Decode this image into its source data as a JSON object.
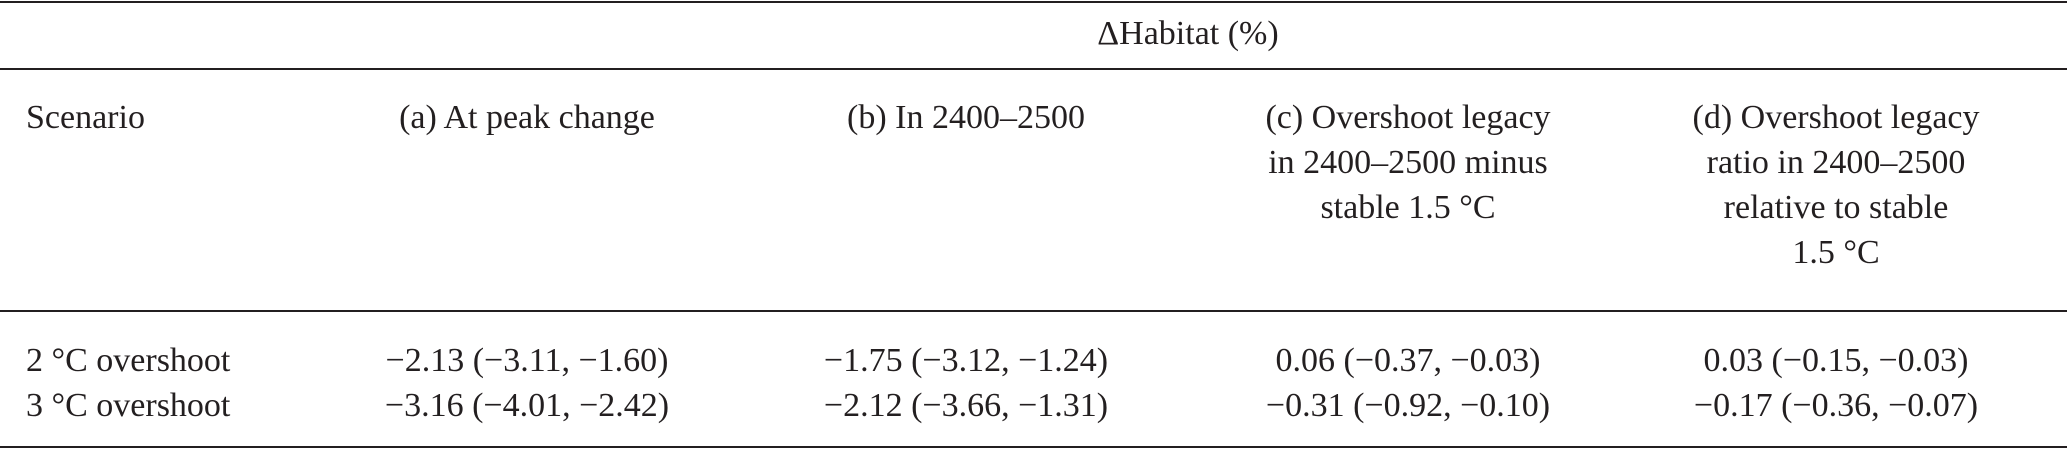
{
  "table": {
    "group_header": "ΔHabitat (%)",
    "columns": [
      "Scenario",
      "(a) At peak change",
      "(b) In 2400–2500",
      "(c) Overshoot legacy in 2400–2500 minus stable 1.5 °C",
      "(d) Overshoot legacy ratio in 2400–2500 relative to stable 1.5 °C"
    ],
    "column_lines": [
      [
        "Scenario"
      ],
      [
        "(a) At peak change"
      ],
      [
        "(b) In 2400–2500"
      ],
      [
        "(c) Overshoot legacy",
        "in 2400–2500 minus",
        "stable 1.5 °C"
      ],
      [
        "(d) Overshoot legacy",
        "ratio in 2400–2500",
        "relative to stable",
        "1.5 °C"
      ]
    ],
    "rows": [
      [
        "2 °C overshoot",
        "−2.13 (−3.11, −1.60)",
        "−1.75 (−3.12, −1.24)",
        "0.06 (−0.37, −0.03)",
        "0.03 (−0.15, −0.03)"
      ],
      [
        "3 °C overshoot",
        "−3.16 (−4.01, −2.42)",
        "−2.12 (−3.66, −1.31)",
        "−0.31 (−0.92, −0.10)",
        "−0.17 (−0.36, −0.07)"
      ]
    ]
  }
}
